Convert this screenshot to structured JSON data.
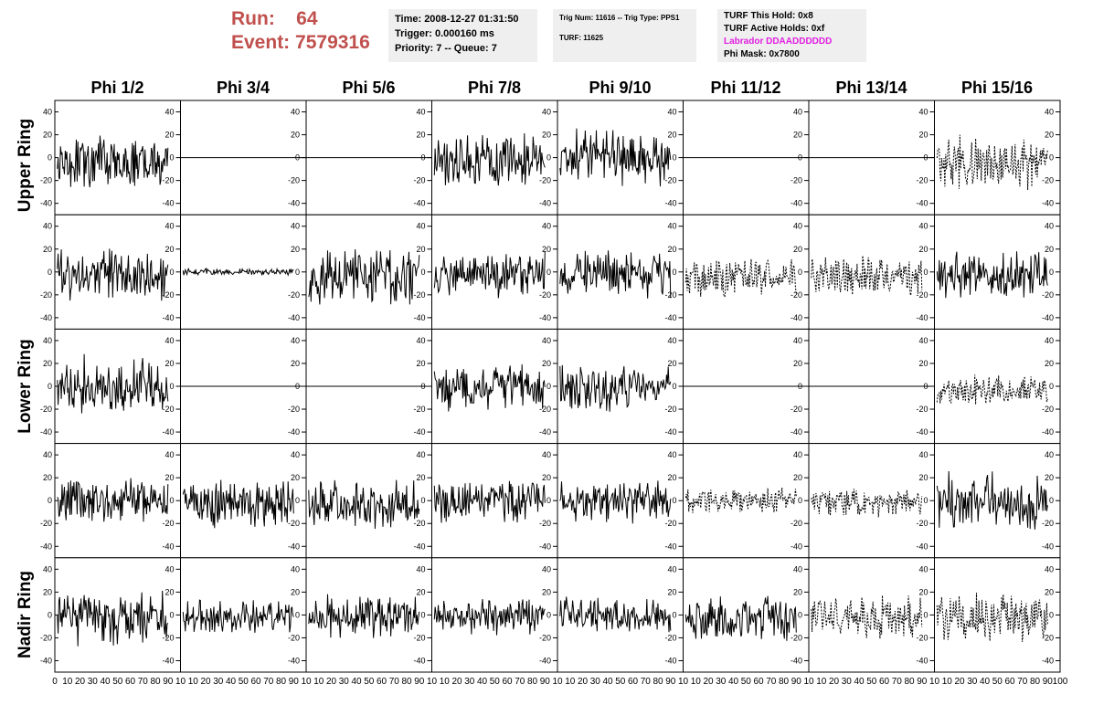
{
  "header": {
    "run_label": "Run:",
    "run_value": "64",
    "event_label": "Event:",
    "event_value": "7579316"
  },
  "info_time": {
    "time": "Time: 2008-12-27 01:31:50",
    "trigger": "Trigger: 0.000160 ms",
    "priority": "Priority: 7 -- Queue: 7"
  },
  "info_trig": {
    "trig": "Trig Num: 11616 -- Trig Type: PPS1",
    "turf": "TURF: 11625"
  },
  "info_turf": {
    "this_hold": "TURF This Hold: 0x8",
    "active_holds": "TURF Active Holds: 0xf",
    "labrador": "Labrador DDAADDDDDD",
    "phi_mask": "Phi Mask: 0x7800"
  },
  "colors": {
    "header_red": "#c0504d",
    "labrador_magenta": "#e020e0",
    "info_bg": "#efefef"
  },
  "chart_data": {
    "type": "line",
    "columns": [
      "Phi 1/2",
      "Phi 3/4",
      "Phi 5/6",
      "Phi 7/8",
      "Phi 9/10",
      "Phi 11/12",
      "Phi 13/14",
      "Phi 15/16"
    ],
    "rows": [
      "Upper Ring",
      "Lower Ring",
      "Nadir Ring"
    ],
    "panel_rows": 5,
    "row_label_positions": [
      0,
      2,
      4
    ],
    "xlim": [
      0,
      100
    ],
    "ylim": [
      -50,
      50
    ],
    "x_ticks": [
      0,
      10,
      20,
      30,
      40,
      50,
      60,
      70,
      80,
      90,
      100
    ],
    "y_ticks": [
      -40,
      -20,
      0,
      20,
      40
    ],
    "bottom_tick_labels": [
      [
        "0",
        "10",
        "20",
        "30",
        "40",
        "50",
        "60",
        "70",
        "80",
        "90",
        "10"
      ],
      [
        "10",
        "20",
        "30",
        "40",
        "50",
        "60",
        "70",
        "80",
        "90",
        "10"
      ],
      [
        "10",
        "20",
        "30",
        "40",
        "50",
        "60",
        "70",
        "80",
        "90",
        "10"
      ],
      [
        "10",
        "20",
        "30",
        "40",
        "50",
        "60",
        "70",
        "80",
        "90",
        "10"
      ],
      [
        "10",
        "20",
        "30",
        "40",
        "50",
        "60",
        "70",
        "80",
        "90",
        "10"
      ],
      [
        "10",
        "20",
        "30",
        "40",
        "50",
        "60",
        "70",
        "80",
        "90",
        "10"
      ],
      [
        "10",
        "20",
        "30",
        "40",
        "50",
        "60",
        "70",
        "80",
        "90",
        "10"
      ],
      [
        "10",
        "20",
        "30",
        "40",
        "50",
        "60",
        "70",
        "80",
        "90",
        "100"
      ]
    ],
    "panels": [
      [
        {
          "s": "solid",
          "a": 16,
          "o": -4
        },
        {
          "s": "flat",
          "a": 0,
          "o": 0
        },
        {
          "s": "flat",
          "a": 0,
          "o": 0
        },
        {
          "s": "solid",
          "a": 17,
          "o": -2
        },
        {
          "s": "solid",
          "a": 17,
          "o": 0
        },
        {
          "s": "flat",
          "a": 0,
          "o": 0
        },
        {
          "s": "flat",
          "a": 0,
          "o": 0
        },
        {
          "s": "dashed",
          "a": 16,
          "o": -4
        }
      ],
      [
        {
          "s": "solid",
          "a": 15,
          "o": -3
        },
        {
          "s": "solid",
          "a": 2,
          "o": 0
        },
        {
          "s": "solid",
          "a": 16,
          "o": -4
        },
        {
          "s": "solid",
          "a": 14,
          "o": -2
        },
        {
          "s": "solid",
          "a": 14,
          "o": -2
        },
        {
          "s": "dashed",
          "a": 12,
          "o": -5
        },
        {
          "s": "dashed",
          "a": 13,
          "o": -4
        },
        {
          "s": "solid",
          "a": 15,
          "o": -2
        }
      ],
      [
        {
          "s": "solid",
          "a": 18,
          "o": 0
        },
        {
          "s": "flat",
          "a": 0,
          "o": 0
        },
        {
          "s": "flat",
          "a": 0,
          "o": 0
        },
        {
          "s": "solid",
          "a": 14,
          "o": -2
        },
        {
          "s": "solid",
          "a": 14,
          "o": -1
        },
        {
          "s": "flat",
          "a": 0,
          "o": 0
        },
        {
          "s": "flat",
          "a": 0,
          "o": 0
        },
        {
          "s": "dashed",
          "a": 10,
          "o": -3
        }
      ],
      [
        {
          "s": "solid",
          "a": 13,
          "o": 0
        },
        {
          "s": "solid",
          "a": 15,
          "o": -2
        },
        {
          "s": "solid",
          "a": 15,
          "o": -2
        },
        {
          "s": "solid",
          "a": 14,
          "o": -1
        },
        {
          "s": "solid",
          "a": 14,
          "o": -1
        },
        {
          "s": "dashed",
          "a": 8,
          "o": 0
        },
        {
          "s": "dashed",
          "a": 8,
          "o": -2
        },
        {
          "s": "solid",
          "a": 17,
          "o": -1
        }
      ],
      [
        {
          "s": "solid",
          "a": 16,
          "o": -3
        },
        {
          "s": "solid",
          "a": 11,
          "o": -2
        },
        {
          "s": "solid",
          "a": 13,
          "o": -1
        },
        {
          "s": "solid",
          "a": 11,
          "o": -1
        },
        {
          "s": "solid",
          "a": 11,
          "o": -1
        },
        {
          "s": "solid",
          "a": 14,
          "o": -3
        },
        {
          "s": "dashed",
          "a": 14,
          "o": -2
        },
        {
          "s": "dashed",
          "a": 15,
          "o": -3
        }
      ]
    ]
  }
}
